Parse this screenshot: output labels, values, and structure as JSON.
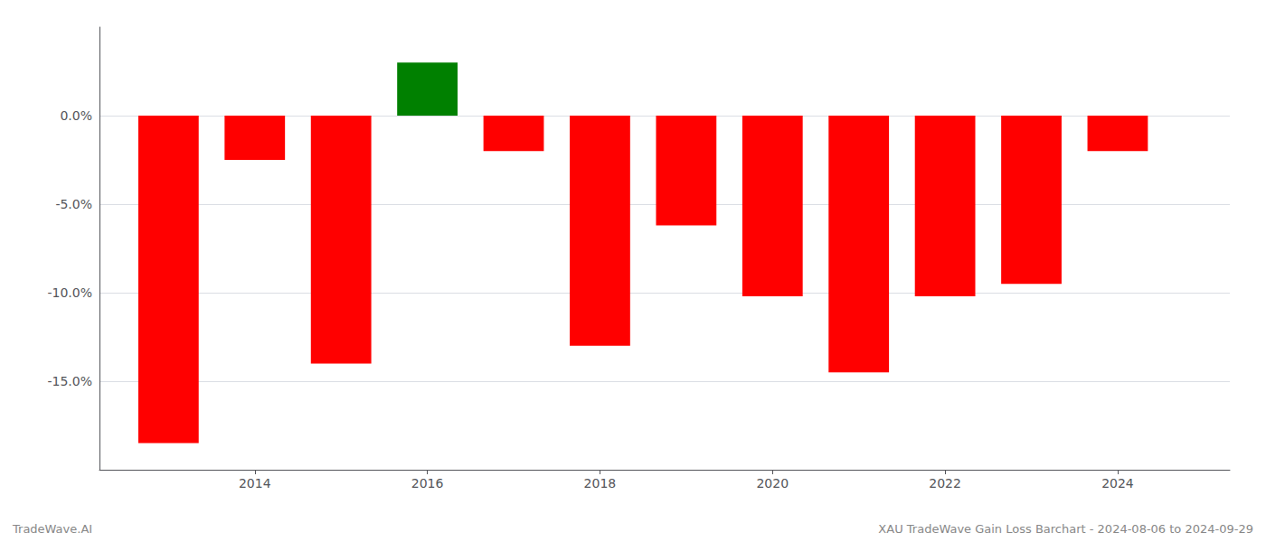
{
  "chart_data": {
    "type": "bar",
    "x": [
      2013,
      2014,
      2015,
      2016,
      2017,
      2018,
      2019,
      2020,
      2021,
      2022,
      2023,
      2024
    ],
    "values": [
      -18.5,
      -2.5,
      -14.0,
      3.0,
      -2.0,
      -13.0,
      -6.2,
      -10.2,
      -14.5,
      -10.2,
      -9.5,
      -2.0
    ],
    "colors": [
      "#ff0000",
      "#ff0000",
      "#ff0000",
      "#008000",
      "#ff0000",
      "#ff0000",
      "#ff0000",
      "#ff0000",
      "#ff0000",
      "#ff0000",
      "#ff0000",
      "#ff0000"
    ],
    "xlim": [
      2012.2,
      2025.3
    ],
    "xticks": [
      2014,
      2016,
      2018,
      2020,
      2022,
      2024
    ],
    "ylim": [
      -20,
      5
    ],
    "yticks": [
      {
        "value": 0.0,
        "label": "0.0%"
      },
      {
        "value": -5.0,
        "label": "-5.0%"
      },
      {
        "value": -10.0,
        "label": "-10.0%"
      },
      {
        "value": -15.0,
        "label": "-15.0%"
      }
    ],
    "grid": true,
    "annotations": [
      "TradeWave.AI",
      "XAU TradeWave Gain Loss Barchart - 2024-08-06 to 2024-09-29"
    ]
  }
}
